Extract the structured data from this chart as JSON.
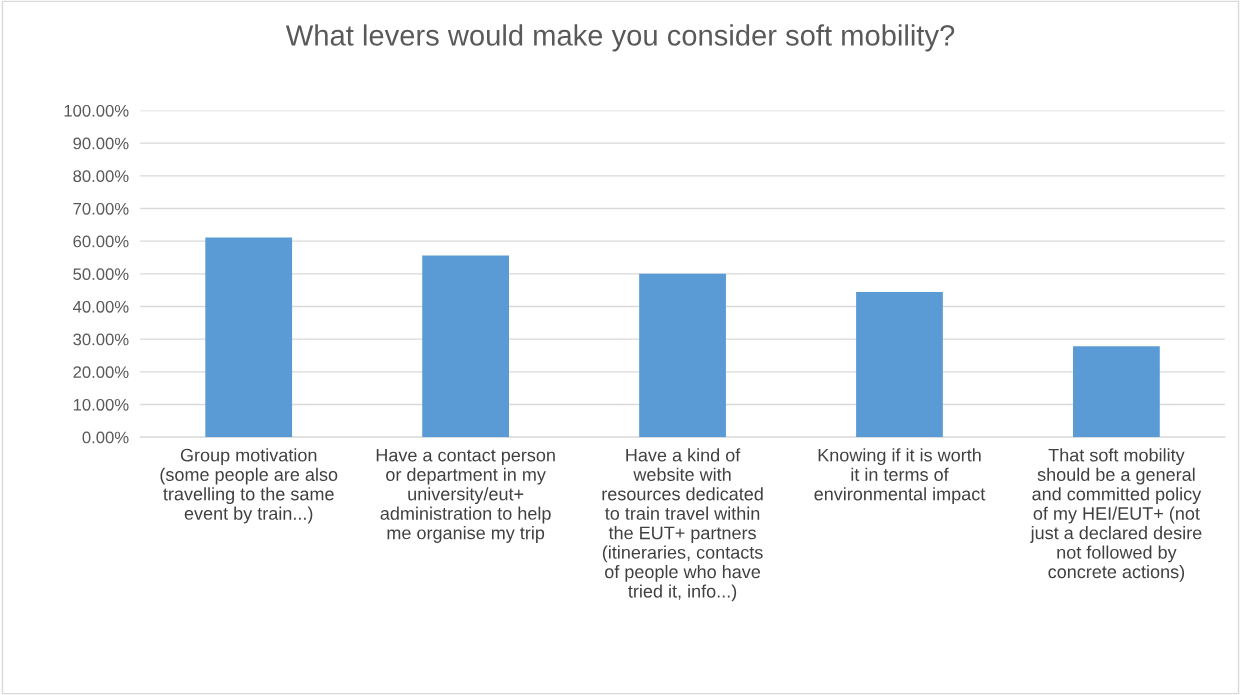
{
  "chart_data": {
    "type": "bar",
    "title": "What levers would make you consider soft mobility?",
    "categories": [
      "Group motivation\n(some people are also\ntravelling to the same\nevent by train...)",
      "Have a contact person\nor department in my\nuniversity/eut+\nadministration to help\nme organise my trip",
      "Have a kind of\nwebsite with\nresources dedicated\nto train travel within\nthe EUT+ partners\n(itineraries, contacts\nof people who have\ntried it, info...)",
      "Knowing if it is worth\nit in terms of\nenvironmental impact",
      "That soft mobility\nshould be a general\nand committed policy\nof my HEI/EUT+ (not\njust a declared desire\nnot followed by\nconcrete actions)"
    ],
    "values": [
      61.1,
      55.6,
      50.0,
      44.4,
      27.8
    ],
    "color": "#5b9bd5",
    "ylim": [
      0,
      100
    ],
    "yticks": [
      {
        "value": 0,
        "label": "0.00%"
      },
      {
        "value": 10,
        "label": "10.00%"
      },
      {
        "value": 20,
        "label": "20.00%"
      },
      {
        "value": 30,
        "label": "30.00%"
      },
      {
        "value": 40,
        "label": "40.00%"
      },
      {
        "value": 50,
        "label": "50.00%"
      },
      {
        "value": 60,
        "label": "60.00%"
      },
      {
        "value": 70,
        "label": "70.00%"
      },
      {
        "value": 80,
        "label": "80.00%"
      },
      {
        "value": 90,
        "label": "90.00%"
      },
      {
        "value": 100,
        "label": "100.00%"
      }
    ],
    "grid": "y"
  }
}
